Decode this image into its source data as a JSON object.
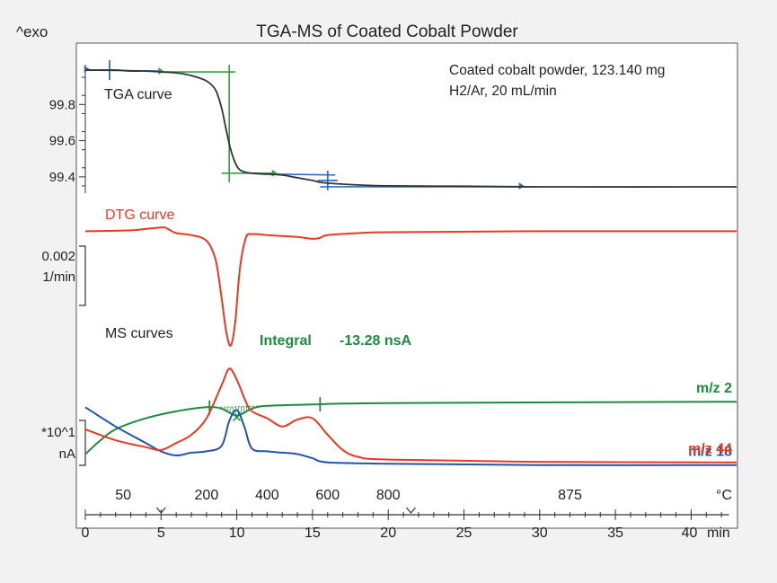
{
  "chart_data": {
    "type": "line",
    "title": "TGA-MS of Coated Cobalt Powder",
    "exo_label": "^exo",
    "sample_info": [
      "Coated cobalt powder, 123.140 mg",
      "H2/Ar, 20 mL/min"
    ],
    "time_axis": {
      "unit": "min",
      "range": [
        0,
        43
      ],
      "ticks": [
        "0",
        "5",
        "10",
        "15",
        "20",
        "25",
        "30",
        "35",
        "40"
      ]
    },
    "temperature_axis": {
      "unit": "°C",
      "labels": [
        {
          "t": 2.5,
          "label": "50"
        },
        {
          "t": 8.0,
          "label": "200"
        },
        {
          "t": 12.0,
          "label": "400"
        },
        {
          "t": 16.0,
          "label": "600"
        },
        {
          "t": 20.0,
          "label": "800"
        },
        {
          "t": 32.0,
          "label": "875"
        }
      ]
    },
    "tga": {
      "name": "TGA curve",
      "unit": "%",
      "ylim": [
        99.31,
        100.03
      ],
      "ticks": [
        "99.8",
        "99.6",
        "99.4"
      ],
      "tick_values": [
        99.8,
        99.6,
        99.4
      ],
      "points": [
        [
          0,
          99.99
        ],
        [
          2,
          99.99
        ],
        [
          3,
          99.985
        ],
        [
          4,
          99.985
        ],
        [
          5,
          99.98
        ],
        [
          6,
          99.975
        ],
        [
          7,
          99.96
        ],
        [
          8,
          99.93
        ],
        [
          8.6,
          99.88
        ],
        [
          9,
          99.78
        ],
        [
          9.3,
          99.66
        ],
        [
          9.6,
          99.55
        ],
        [
          10,
          99.46
        ],
        [
          10.4,
          99.43
        ],
        [
          11,
          99.42
        ],
        [
          12,
          99.415
        ],
        [
          13,
          99.41
        ],
        [
          14,
          99.395
        ],
        [
          15,
          99.38
        ],
        [
          15.5,
          99.37
        ],
        [
          16,
          99.365
        ],
        [
          18,
          99.355
        ],
        [
          20,
          99.35
        ],
        [
          25,
          99.348
        ],
        [
          30,
          99.345
        ],
        [
          43,
          99.345
        ]
      ]
    },
    "dtg": {
      "name": "DTG curve",
      "unit": "1/min",
      "scale_bar": [
        "0.002",
        "1/min"
      ],
      "ylim": [
        -0.0125,
        0.0007
      ],
      "points": [
        [
          0,
          0
        ],
        [
          3,
          0.0001
        ],
        [
          5,
          0.0004
        ],
        [
          5.5,
          0.0002
        ],
        [
          6,
          -0.0002
        ],
        [
          7,
          -0.0004
        ],
        [
          8,
          -0.001
        ],
        [
          8.6,
          -0.003
        ],
        [
          9,
          -0.007
        ],
        [
          9.3,
          -0.0105
        ],
        [
          9.6,
          -0.012
        ],
        [
          9.9,
          -0.0095
        ],
        [
          10.2,
          -0.004
        ],
        [
          10.6,
          -0.0007
        ],
        [
          11,
          -0.0003
        ],
        [
          12,
          -0.0004
        ],
        [
          13,
          -0.0005
        ],
        [
          14,
          -0.0006
        ],
        [
          15,
          -0.0008
        ],
        [
          15.5,
          -0.0007
        ],
        [
          16,
          -0.0004
        ],
        [
          18,
          -0.0002
        ],
        [
          20,
          -0.0001
        ],
        [
          30,
          0
        ],
        [
          43,
          0
        ]
      ]
    },
    "ms": {
      "name": "MS curves",
      "scale_bar": [
        "*10^1",
        "nA"
      ],
      "integral_label": "Integral",
      "integral_value": "-13.28 nsA",
      "integral_range": [
        8.2,
        15.5
      ],
      "series": [
        {
          "name": "m/z 2",
          "color": "#1e8a3c",
          "points": [
            [
              0,
              0.3
            ],
            [
              1,
              0.8
            ],
            [
              2,
              1.2
            ],
            [
              4,
              1.6
            ],
            [
              6,
              1.85
            ],
            [
              8,
              2.0
            ],
            [
              9,
              1.95
            ],
            [
              10,
              1.7
            ],
            [
              11,
              1.95
            ],
            [
              12,
              2.05
            ],
            [
              15,
              2.1
            ],
            [
              20,
              2.15
            ],
            [
              43,
              2.2
            ]
          ]
        },
        {
          "name": "m/z 18",
          "color": "#2255aa",
          "points": [
            [
              0,
              2.0
            ],
            [
              2,
              1.3
            ],
            [
              4,
              0.7
            ],
            [
              5,
              0.4
            ],
            [
              6,
              0.25
            ],
            [
              7,
              0.35
            ],
            [
              8,
              0.4
            ],
            [
              9,
              0.6
            ],
            [
              9.5,
              1.5
            ],
            [
              10,
              1.9
            ],
            [
              10.5,
              1.3
            ],
            [
              11,
              0.5
            ],
            [
              12,
              0.4
            ],
            [
              13,
              0.35
            ],
            [
              14,
              0.3
            ],
            [
              15,
              0.15
            ],
            [
              16,
              0
            ],
            [
              20,
              -0.05
            ],
            [
              30,
              -0.1
            ],
            [
              43,
              -0.1
            ]
          ]
        },
        {
          "name": "m/z 44",
          "color": "#e83a22",
          "points": [
            [
              0,
              1.2
            ],
            [
              2,
              0.8
            ],
            [
              4,
              0.55
            ],
            [
              5,
              0.45
            ],
            [
              6,
              0.7
            ],
            [
              7,
              1.0
            ],
            [
              8,
              1.6
            ],
            [
              9,
              2.8
            ],
            [
              9.5,
              3.4
            ],
            [
              10,
              3.0
            ],
            [
              10.6,
              2.2
            ],
            [
              11,
              1.85
            ],
            [
              12,
              1.6
            ],
            [
              13,
              1.3
            ],
            [
              14,
              1.55
            ],
            [
              15,
              1.6
            ],
            [
              16,
              1.0
            ],
            [
              17,
              0.45
            ],
            [
              18,
              0.2
            ],
            [
              20,
              0.1
            ],
            [
              30,
              0.02
            ],
            [
              43,
              0
            ]
          ]
        }
      ]
    },
    "colors": {
      "tga": "#333333",
      "dtg": "#e83a22",
      "marker_green": "#33a040",
      "marker_blue": "#2f6fbf"
    }
  }
}
